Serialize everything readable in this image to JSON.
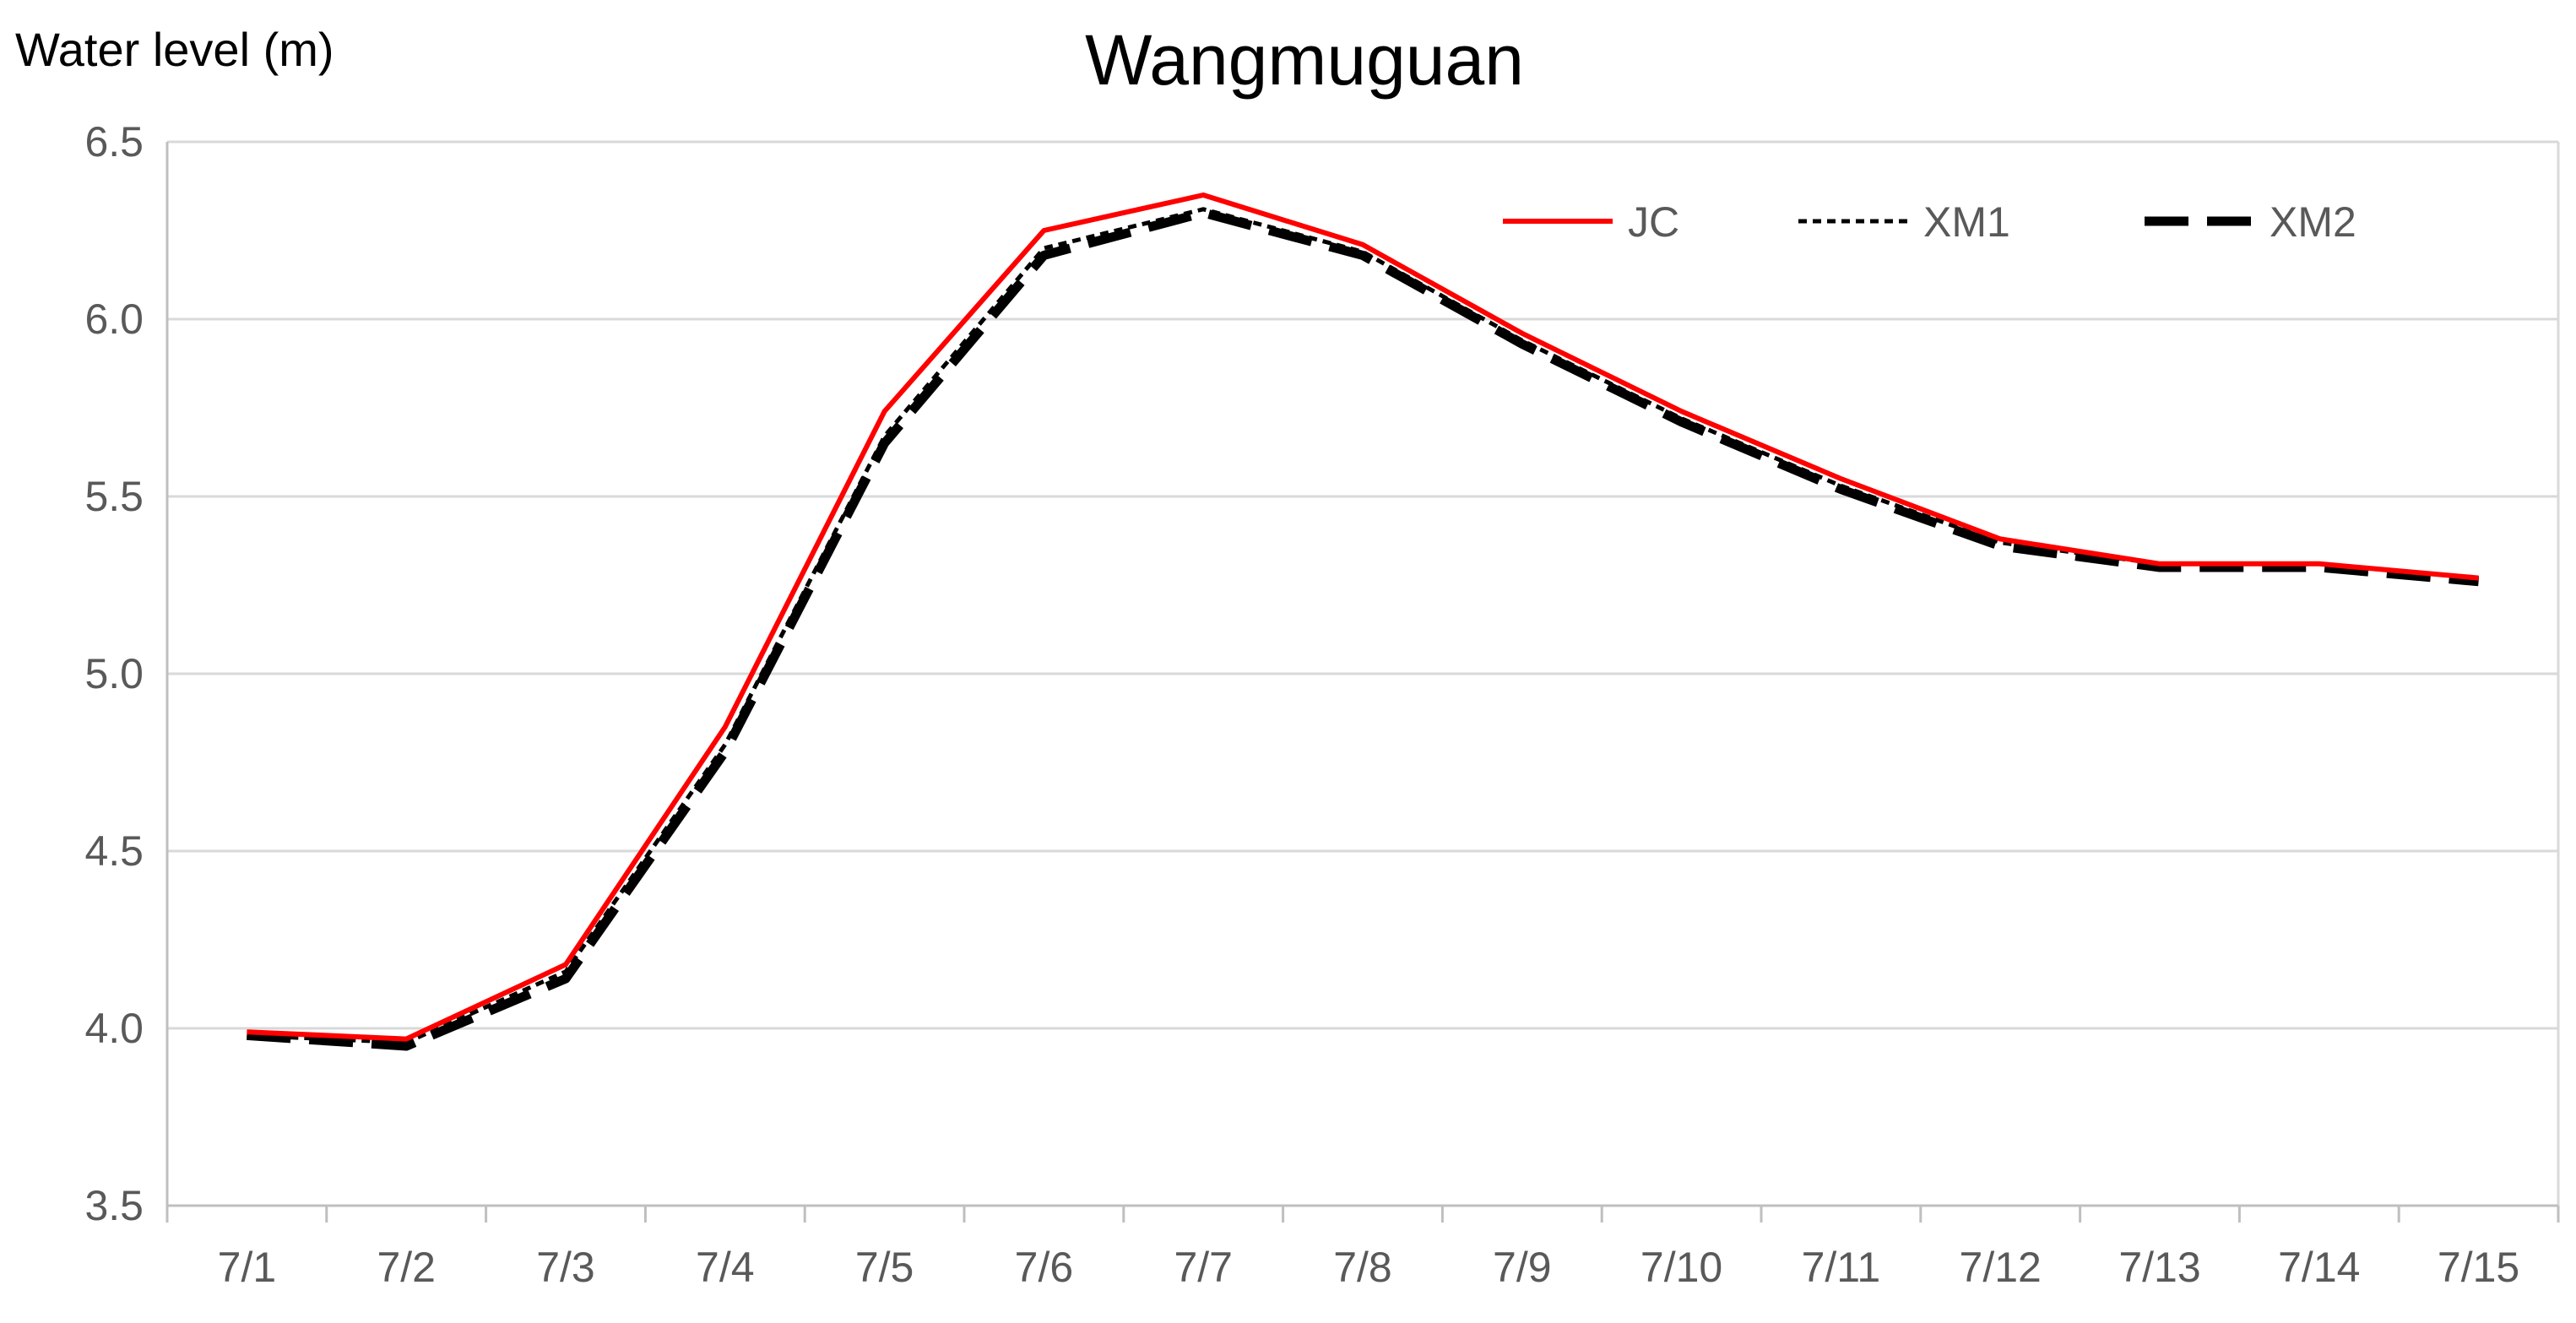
{
  "chart_data": {
    "type": "line",
    "title": "Wangmuguan",
    "xlabel": "",
    "ylabel": "Water level (m)",
    "categories": [
      "7/1",
      "7/2",
      "7/3",
      "7/4",
      "7/5",
      "7/6",
      "7/7",
      "7/8",
      "7/9",
      "7/10",
      "7/11",
      "7/12",
      "7/13",
      "7/14",
      "7/15"
    ],
    "ylim": [
      3.5,
      6.5
    ],
    "yticks": [
      "3.5",
      "4.0",
      "4.5",
      "5.0",
      "5.5",
      "6.0",
      "6.5"
    ],
    "grid": true,
    "legend_position": "top-right",
    "series": [
      {
        "name": "JC",
        "color": "#ff0000",
        "style": "solid",
        "values": [
          3.99,
          3.97,
          4.18,
          4.85,
          5.74,
          6.25,
          6.35,
          6.21,
          5.96,
          5.74,
          5.55,
          5.38,
          5.31,
          5.31,
          5.27
        ]
      },
      {
        "name": "XM1",
        "color": "#000000",
        "style": "dotted",
        "values": [
          3.98,
          3.96,
          4.16,
          4.8,
          5.67,
          6.2,
          6.31,
          6.19,
          5.94,
          5.72,
          5.53,
          5.37,
          5.31,
          5.31,
          5.27
        ]
      },
      {
        "name": "XM2",
        "color": "#000000",
        "style": "dashed",
        "values": [
          3.98,
          3.95,
          4.14,
          4.78,
          5.65,
          6.18,
          6.3,
          6.18,
          5.93,
          5.71,
          5.52,
          5.36,
          5.3,
          5.3,
          5.26
        ]
      }
    ]
  }
}
